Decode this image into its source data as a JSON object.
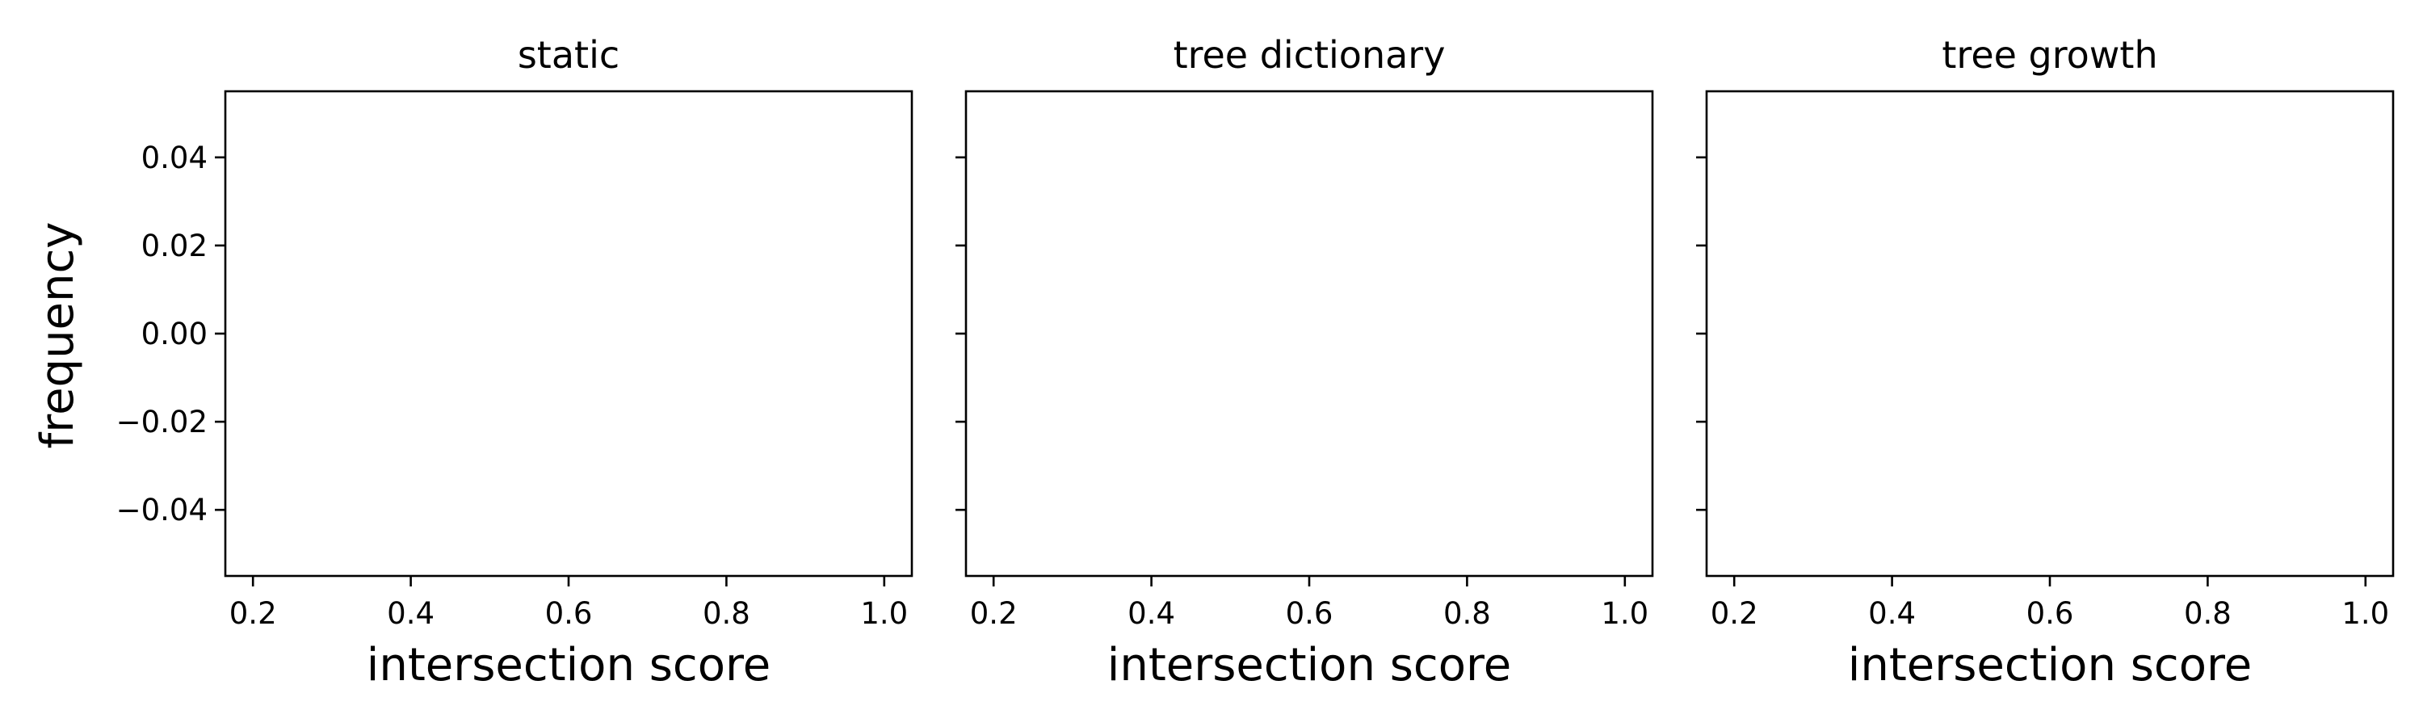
{
  "chart_data": {
    "type": "scatter",
    "shared_y": true,
    "ylabel": "frequency",
    "yticks": [
      0.04,
      0.02,
      0.0,
      -0.02,
      -0.04
    ],
    "ytick_labels": [
      "0.04",
      "0.02",
      "0.00",
      "−0.02",
      "−0.04"
    ],
    "ylim": [
      -0.055,
      0.055
    ],
    "grid": false,
    "panels": [
      {
        "title": "static",
        "xlabel": "intersection score",
        "xticks": [
          0.2,
          0.4,
          0.6,
          0.8,
          1.0
        ],
        "xtick_labels": [
          "0.2",
          "0.4",
          "0.6",
          "0.8",
          "1.0"
        ],
        "xlim": [
          0.165,
          1.035
        ],
        "series": []
      },
      {
        "title": "tree dictionary",
        "xlabel": "intersection score",
        "xticks": [
          0.2,
          0.4,
          0.6,
          0.8,
          1.0
        ],
        "xtick_labels": [
          "0.2",
          "0.4",
          "0.6",
          "0.8",
          "1.0"
        ],
        "xlim": [
          0.165,
          1.035
        ],
        "series": []
      },
      {
        "title": "tree growth",
        "xlabel": "intersection score",
        "xticks": [
          0.2,
          0.4,
          0.6,
          0.8,
          1.0
        ],
        "xtick_labels": [
          "0.2",
          "0.4",
          "0.6",
          "0.8",
          "1.0"
        ],
        "xlim": [
          0.165,
          1.035
        ],
        "series": []
      }
    ]
  }
}
